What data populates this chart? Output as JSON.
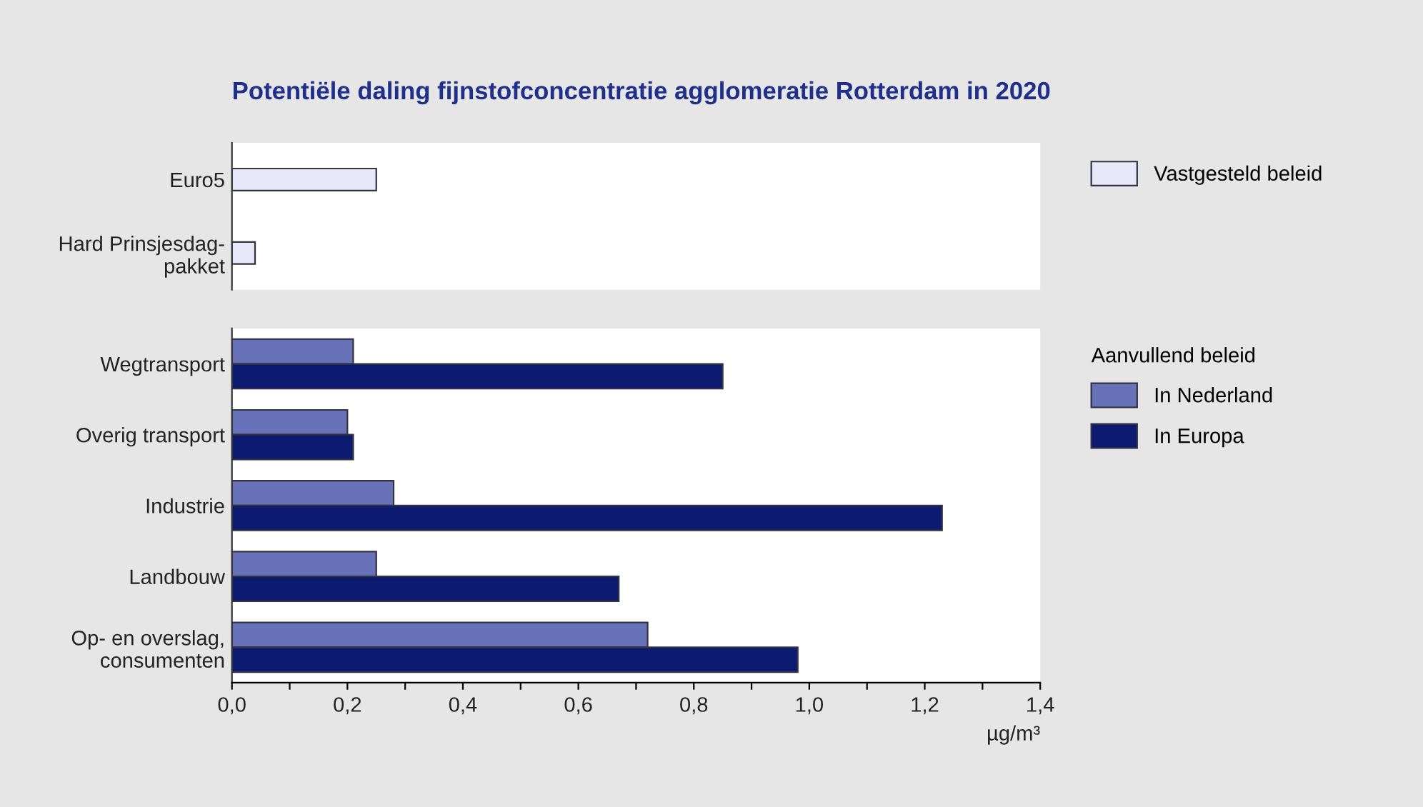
{
  "chart_data": [
    {
      "type": "bar",
      "orientation": "horizontal",
      "title": "Potentiële daling fijnstofconcentratie agglomeratie Rotterdam in 2020",
      "categories": [
        "Euro5",
        "Hard Prinsjesdag-\npakket"
      ],
      "series": [
        {
          "name": "Vastgesteld beleid",
          "color": "#e8e8f8",
          "values": [
            0.25,
            0.04
          ]
        }
      ],
      "xlim": [
        0,
        1.4
      ],
      "tick_labels": "y",
      "legend": "right",
      "grid": false
    },
    {
      "type": "bar",
      "orientation": "horizontal",
      "categories": [
        "Wegtransport",
        "Overig transport",
        "Industrie",
        "Landbouw",
        "Op- en overslag,\nconsumenten"
      ],
      "series": [
        {
          "name": "In Nederland",
          "color": "#6872b8",
          "values": [
            0.21,
            0.2,
            0.28,
            0.25,
            0.72
          ]
        },
        {
          "name": "In Europa",
          "color": "#0c1a70",
          "values": [
            0.85,
            0.21,
            1.23,
            0.67,
            0.98
          ]
        }
      ],
      "xlim": [
        0,
        1.4
      ],
      "xticks": [
        {
          "value": 0,
          "label": "0,0"
        },
        {
          "value": 0.1,
          "label": null
        },
        {
          "value": 0.2,
          "label": "0,2"
        },
        {
          "value": 0.3,
          "label": null
        },
        {
          "value": 0.4,
          "label": "0,4"
        },
        {
          "value": 0.5,
          "label": null
        },
        {
          "value": 0.6,
          "label": "0,6"
        },
        {
          "value": 0.7,
          "label": null
        },
        {
          "value": 0.8,
          "label": "0,8"
        },
        {
          "value": 0.9,
          "label": null
        },
        {
          "value": 1.0,
          "label": "1,0"
        },
        {
          "value": 1.1,
          "label": null
        },
        {
          "value": 1.2,
          "label": "1,2"
        },
        {
          "value": 1.3,
          "label": null
        },
        {
          "value": 1.4,
          "label": "1,4"
        }
      ],
      "xlabel": "µg/m³",
      "legend_title": "Aanvullend beleid",
      "legend": "right",
      "grid": false
    }
  ]
}
